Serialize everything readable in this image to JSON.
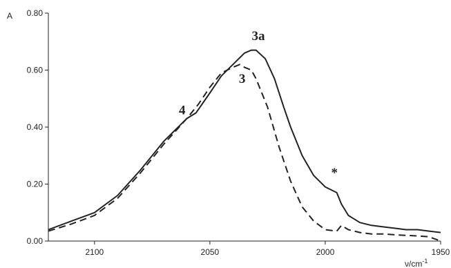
{
  "chart_data": {
    "type": "line",
    "title": "",
    "ylabel": "A",
    "xlabel": "ν/cm",
    "xlabel_superscript": "-1",
    "xlim": [
      2120,
      1950
    ],
    "ylim": [
      0,
      0.8
    ],
    "x_ticks": [
      2100,
      2050,
      2000,
      1950
    ],
    "x_tick_labels": [
      "2100",
      "2050",
      "2000",
      "1950"
    ],
    "y_ticks": [
      0,
      0.2,
      0.4,
      0.6,
      0.8
    ],
    "y_tick_labels": [
      "0.00",
      "0.20",
      "0.40",
      "0.60",
      "0.80"
    ],
    "grid": false,
    "series": [
      {
        "style": "solid",
        "color": "#222222",
        "x": [
          2120,
          2110,
          2100,
          2090,
          2080,
          2070,
          2060,
          2056,
          2050,
          2045,
          2040,
          2035,
          2032,
          2030,
          2026,
          2022,
          2018,
          2015,
          2010,
          2005,
          2000,
          1995,
          1993,
          1990,
          1985,
          1980,
          1975,
          1970,
          1965,
          1960,
          1955,
          1950
        ],
        "y": [
          0.04,
          0.07,
          0.1,
          0.16,
          0.25,
          0.35,
          0.43,
          0.45,
          0.52,
          0.58,
          0.62,
          0.66,
          0.67,
          0.67,
          0.64,
          0.57,
          0.47,
          0.4,
          0.3,
          0.23,
          0.19,
          0.17,
          0.13,
          0.09,
          0.065,
          0.055,
          0.05,
          0.045,
          0.04,
          0.04,
          0.035,
          0.03
        ]
      },
      {
        "style": "dashed",
        "color": "#222222",
        "x": [
          2120,
          2110,
          2100,
          2090,
          2080,
          2070,
          2060,
          2055,
          2050,
          2045,
          2040,
          2037,
          2035,
          2032,
          2030,
          2025,
          2020,
          2015,
          2010,
          2005,
          2000,
          1995,
          1993,
          1990,
          1985,
          1980,
          1975,
          1970,
          1965,
          1960,
          1955,
          1950
        ],
        "y": [
          0.035,
          0.06,
          0.09,
          0.15,
          0.24,
          0.34,
          0.43,
          0.48,
          0.54,
          0.59,
          0.61,
          0.62,
          0.61,
          0.6,
          0.57,
          0.47,
          0.33,
          0.21,
          0.12,
          0.07,
          0.04,
          0.035,
          0.055,
          0.04,
          0.03,
          0.025,
          0.025,
          0.022,
          0.02,
          0.018,
          0.015,
          0.0
        ]
      }
    ],
    "annotations": [
      {
        "text": "3a",
        "x": 2029,
        "y": 0.705
      },
      {
        "text": "3",
        "x": 2036,
        "y": 0.555
      },
      {
        "text": "4",
        "x": 2062,
        "y": 0.445
      },
      {
        "text": "*",
        "x": 1996,
        "y": 0.225
      }
    ]
  }
}
